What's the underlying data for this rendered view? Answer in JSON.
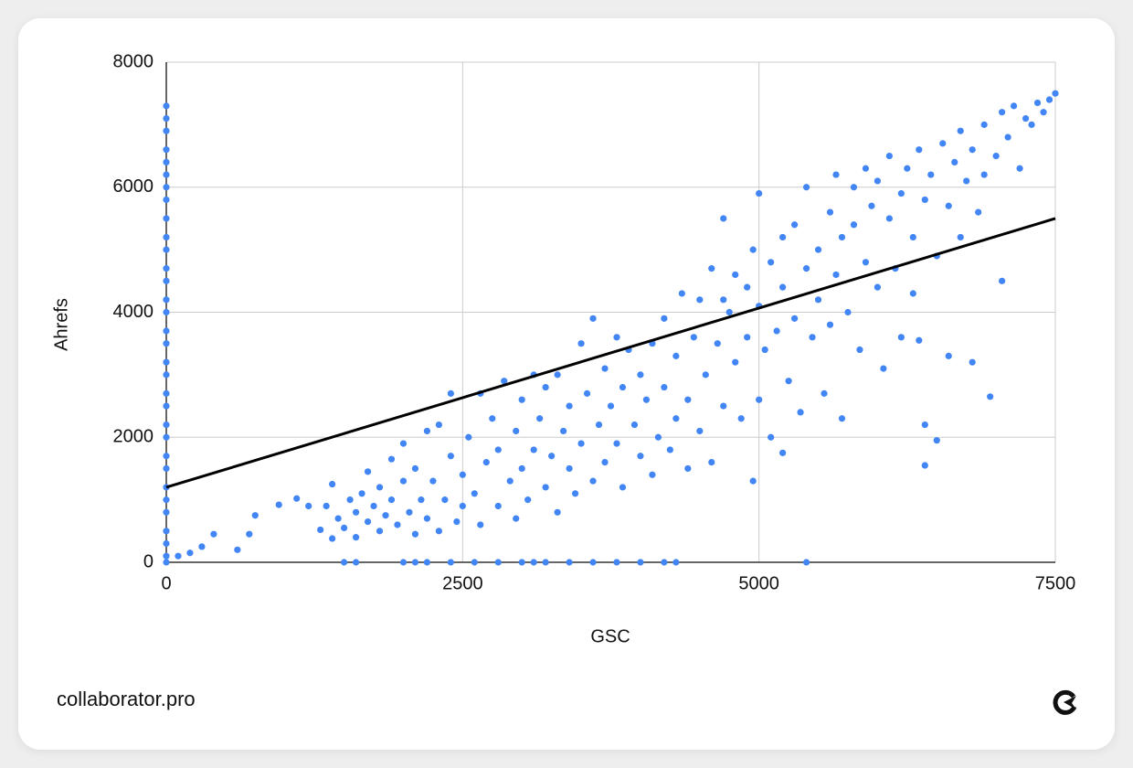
{
  "chart_data": {
    "type": "scatter",
    "x_label": "GSC",
    "y_label": "Ahrefs",
    "color": "#4285f4",
    "grid": true,
    "xlim": [
      0,
      7500
    ],
    "ylim": [
      0,
      8000
    ],
    "xticks": [
      0,
      2500,
      5000,
      7500
    ],
    "yticks": [
      0,
      2000,
      4000,
      6000,
      8000
    ],
    "trendline": {
      "color": "#000000",
      "x": [
        0,
        7500
      ],
      "values": [
        1200,
        5500
      ]
    },
    "x": [
      0,
      0,
      0,
      0,
      0,
      0,
      0,
      0,
      0,
      0,
      0,
      0,
      0,
      0,
      0,
      0,
      0,
      0,
      0,
      0,
      0,
      0,
      0,
      0,
      0,
      0,
      0,
      0,
      0,
      0,
      0,
      0,
      100,
      200,
      300,
      400,
      600,
      700,
      750,
      950,
      1100,
      1200,
      1500,
      1600,
      2000,
      2100,
      2200,
      2400,
      2600,
      2800,
      3000,
      3100,
      3200,
      3400,
      3600,
      3800,
      4000,
      4200,
      4300,
      5400,
      1300,
      1350,
      1400,
      1400,
      1450,
      1500,
      1550,
      1600,
      1600,
      1650,
      1700,
      1700,
      1750,
      1800,
      1800,
      1850,
      1900,
      1900,
      1950,
      2000,
      2000,
      2050,
      2100,
      2100,
      2150,
      2200,
      2200,
      2250,
      2300,
      2300,
      2350,
      2400,
      2400,
      2450,
      2500,
      2500,
      2550,
      2600,
      2650,
      2650,
      2700,
      2750,
      2800,
      2800,
      2850,
      2900,
      2950,
      2950,
      3000,
      3000,
      3050,
      3100,
      3100,
      3150,
      3200,
      3200,
      3250,
      3300,
      3300,
      3350,
      3400,
      3400,
      3450,
      3500,
      3500,
      3550,
      3600,
      3600,
      3650,
      3700,
      3700,
      3750,
      3800,
      3800,
      3850,
      3850,
      3900,
      3950,
      4000,
      4000,
      4050,
      4100,
      4100,
      4150,
      4200,
      4200,
      4250,
      4300,
      4300,
      4350,
      4400,
      4400,
      4450,
      4500,
      4500,
      4550,
      4600,
      4600,
      4650,
      4700,
      4700,
      4750,
      4800,
      4800,
      4850,
      4900,
      4900,
      4950,
      4950,
      5000,
      5000,
      5000,
      5050,
      5100,
      5100,
      5150,
      5200,
      5200,
      5250,
      5300,
      5300,
      5350,
      5400,
      5400,
      5450,
      5500,
      5500,
      5550,
      5600,
      5600,
      5650,
      5650,
      5700,
      5700,
      5750,
      5800,
      5800,
      5850,
      5900,
      5900,
      5950,
      6000,
      6000,
      6050,
      6100,
      6100,
      6150,
      6200,
      6200,
      6250,
      6300,
      6300,
      6350,
      6400,
      6400,
      6450,
      6500,
      6500,
      6550,
      6600,
      6600,
      6650,
      6700,
      6700,
      6750,
      6800,
      6800,
      6850,
      6900,
      6900,
      6950,
      7000,
      7050,
      7050,
      7100,
      7150,
      7200,
      7250,
      7300,
      7350,
      7400,
      7450,
      7500,
      6400,
      6350,
      5200,
      4700
    ],
    "values": [
      7300,
      7100,
      6900,
      6600,
      6400,
      6200,
      6000,
      5800,
      5500,
      5200,
      5000,
      4700,
      4500,
      4200,
      4000,
      3700,
      3500,
      3200,
      3000,
      2700,
      2500,
      2200,
      2000,
      1700,
      1500,
      1200,
      1000,
      800,
      500,
      300,
      100,
      0,
      100,
      150,
      250,
      450,
      200,
      450,
      750,
      920,
      1020,
      900,
      0,
      0,
      0,
      0,
      0,
      0,
      0,
      0,
      0,
      0,
      0,
      0,
      0,
      0,
      0,
      0,
      0,
      0,
      520,
      900,
      1250,
      380,
      700,
      550,
      1000,
      800,
      400,
      1100,
      650,
      1450,
      900,
      500,
      1200,
      750,
      1650,
      1000,
      600,
      1900,
      1300,
      800,
      1500,
      450,
      1000,
      2100,
      700,
      1300,
      2200,
      500,
      1000,
      1700,
      2700,
      650,
      1400,
      900,
      2000,
      1100,
      2700,
      600,
      1600,
      2300,
      900,
      1800,
      2900,
      1300,
      2100,
      700,
      1500,
      2600,
      1000,
      3000,
      1800,
      2300,
      1200,
      2800,
      1700,
      3000,
      800,
      2100,
      1500,
      2500,
      1100,
      3500,
      1900,
      2700,
      1300,
      3900,
      2200,
      1600,
      3100,
      2500,
      1900,
      3600,
      1200,
      2800,
      3400,
      2200,
      1700,
      3000,
      2600,
      3500,
      1400,
      2000,
      3900,
      2800,
      1800,
      3300,
      2300,
      4300,
      2600,
      1500,
      3600,
      4200,
      2100,
      3000,
      4700,
      1600,
      3500,
      5500,
      2500,
      4000,
      3200,
      4600,
      2300,
      4400,
      3600,
      5000,
      1300,
      5900,
      4100,
      2600,
      3400,
      4800,
      2000,
      3700,
      5200,
      4400,
      2900,
      3900,
      5400,
      2400,
      4700,
      6000,
      3600,
      5000,
      4200,
      2700,
      5600,
      3800,
      6200,
      4600,
      5200,
      2300,
      4000,
      6000,
      5400,
      3400,
      4800,
      6300,
      5700,
      4400,
      6100,
      3100,
      5500,
      6500,
      4700,
      5900,
      3600,
      6300,
      5200,
      4300,
      6600,
      5800,
      2200,
      6200,
      4900,
      1950,
      6700,
      5700,
      3300,
      6400,
      6900,
      5200,
      6100,
      6600,
      3200,
      5600,
      7000,
      6200,
      2650,
      6500,
      7200,
      4500,
      6800,
      7300,
      6300,
      7100,
      7000,
      7350,
      7200,
      7400,
      7500,
      1550,
      3550,
      1750,
      4200
    ]
  },
  "footer_text": "collaborator.pro"
}
